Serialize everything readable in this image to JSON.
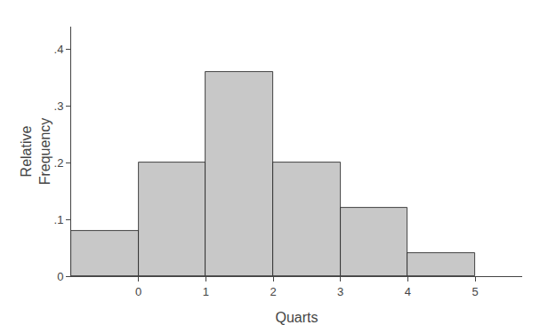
{
  "chart_data": {
    "type": "histogram",
    "bins": [
      -1,
      0,
      1,
      2,
      3,
      4,
      5
    ],
    "values": [
      0.08,
      0.2,
      0.36,
      0.2,
      0.12,
      0.04
    ],
    "color": "#c8c8c8",
    "xlabel": "Quarts",
    "ylabel": "Relative\nFrequency",
    "xlim": [
      -1.0,
      5.7
    ],
    "xticks": [
      0,
      1,
      2,
      3,
      4,
      5
    ],
    "ylim": [
      0,
      0.44
    ],
    "yticks": [
      0,
      {
        "value": 0.1,
        "label": ".1"
      },
      {
        "value": 0.2,
        "label": ".2"
      },
      {
        "value": 0.3,
        "label": ".3"
      },
      {
        "value": 0.4,
        "label": ".4"
      }
    ],
    "grid": false
  }
}
